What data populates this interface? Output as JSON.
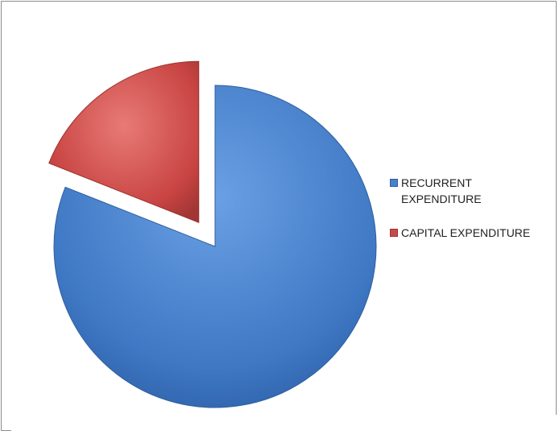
{
  "chart_data": {
    "type": "pie",
    "categories": [
      "RECURRENT EXPENDITURE",
      "CAPITAL EXPENDITURE"
    ],
    "values": [
      81,
      19
    ],
    "exploded": [
      false,
      true
    ],
    "legend_position": "right",
    "colors": [
      "#4a80c8",
      "#c84a48"
    ]
  }
}
